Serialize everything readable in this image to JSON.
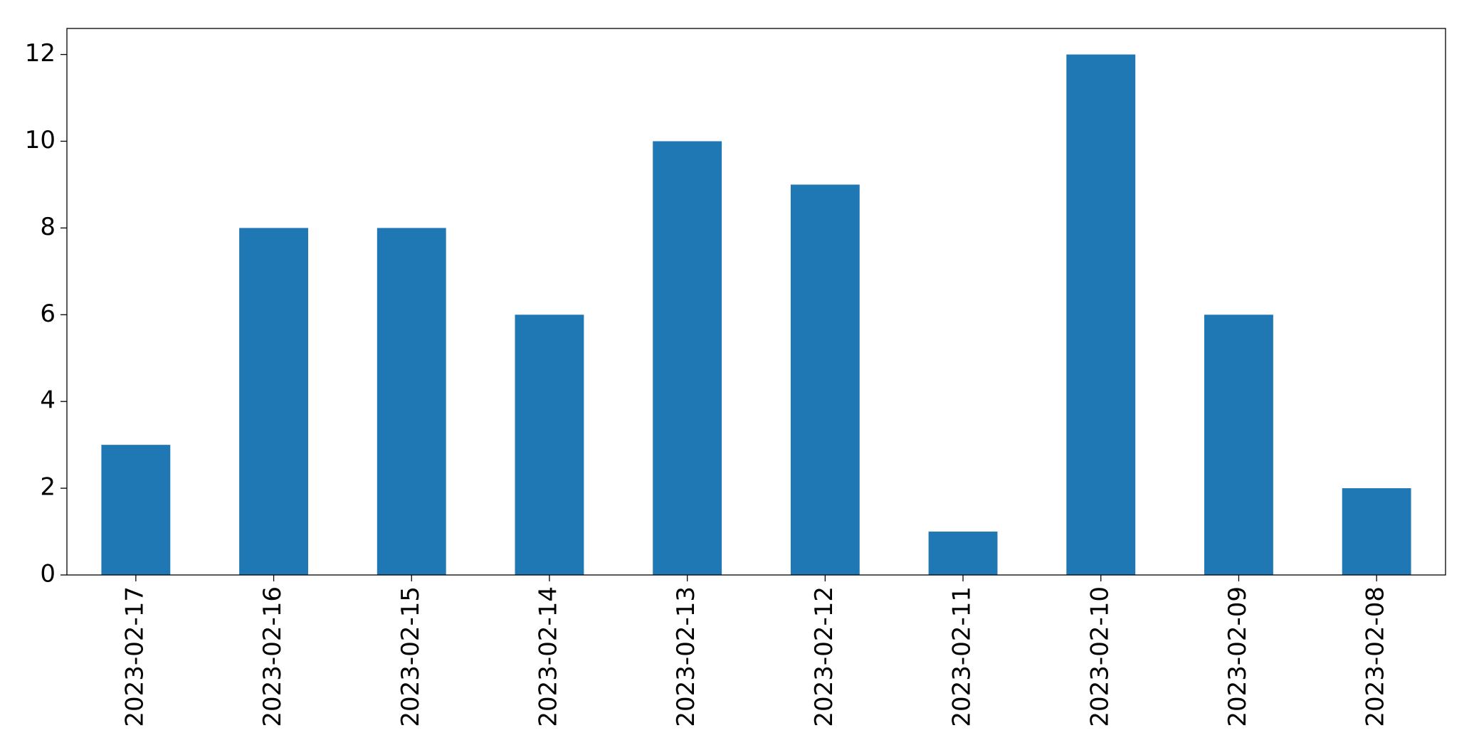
{
  "chart_data": {
    "type": "bar",
    "categories": [
      "2023-02-17",
      "2023-02-16",
      "2023-02-15",
      "2023-02-14",
      "2023-02-13",
      "2023-02-12",
      "2023-02-11",
      "2023-02-10",
      "2023-02-09",
      "2023-02-08"
    ],
    "values": [
      3,
      8,
      8,
      6,
      10,
      9,
      1,
      12,
      6,
      2
    ],
    "color": "#1f77b4",
    "ylim": [
      0,
      12.6
    ],
    "yticks": [
      0,
      2,
      4,
      6,
      8,
      10,
      12
    ],
    "grid": false
  }
}
